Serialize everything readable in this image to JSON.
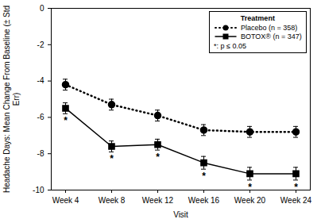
{
  "chart_data": {
    "type": "line",
    "x_label": "Visit",
    "y_label": "Headache Days: Mean Change From Baseline (± Std Err)",
    "categories": [
      "Week 4",
      "Week 8",
      "Week 12",
      "Week 16",
      "Week 20",
      "Week 24"
    ],
    "ylim": [
      -10,
      0
    ],
    "yticks": [
      0,
      -2,
      -4,
      -6,
      -8,
      -10
    ],
    "legend": "top-right",
    "legend_title": "Treatment",
    "legend_note": "*: p ≤ 0.05",
    "significance_marker": "*",
    "series": [
      {
        "name": "Placebo (n = 358)",
        "color": "#000000",
        "line_style": "dotted",
        "marker": "circle",
        "values": [
          -4.2,
          -5.3,
          -5.9,
          -6.7,
          -6.8,
          -6.8
        ],
        "errors": [
          0.3,
          0.3,
          0.3,
          0.3,
          0.3,
          0.3
        ],
        "significant": [
          false,
          false,
          false,
          false,
          false,
          false
        ]
      },
      {
        "name": "BOTOX® (n = 347)",
        "color": "#000000",
        "line_style": "solid",
        "marker": "square",
        "values": [
          -5.5,
          -7.6,
          -7.5,
          -8.5,
          -9.1,
          -9.1
        ],
        "errors": [
          0.3,
          0.3,
          0.3,
          0.35,
          0.35,
          0.35
        ],
        "significant": [
          true,
          true,
          true,
          true,
          true,
          true
        ]
      }
    ]
  }
}
